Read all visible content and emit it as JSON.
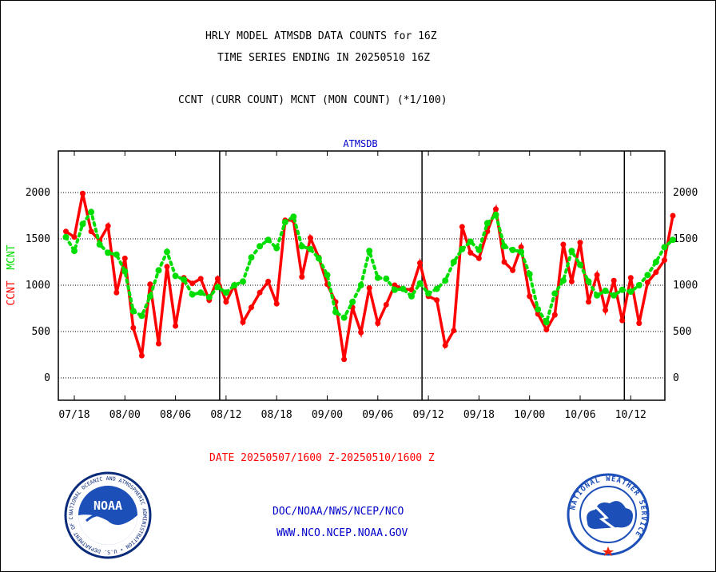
{
  "titles": {
    "line1": "HRLY MODEL ATMSDB DATA COUNTS for 16Z",
    "line2": "TIME SERIES ENDING IN 20250510 16Z",
    "line3": "CCNT (CURR COUNT) MCNT (MON COUNT) (*1/100)"
  },
  "footer": {
    "date_range": "DATE 20250507/1600 Z-20250510/1600 Z",
    "link1": "DOC/NOAA/NWS/NCEP/NCO",
    "link2": "WWW.NCO.NCEP.NOAA.GOV"
  },
  "logos": {
    "noaa_text": "NOAA",
    "noaa_ring": "NATIONAL OCEANIC AND ATMOSPHERIC ADMINISTRATION • U.S. DEPARTMENT OF COMMERCE •",
    "nws_ring": "NATIONAL WEATHER SERVICE"
  },
  "colors": {
    "ccnt": "#ff0000",
    "mcnt": "#00dd00",
    "panel_title": "#0000cc",
    "footer_red": "#ff0000",
    "footer_blue": "#0000cc"
  },
  "chart_data": {
    "type": "line",
    "title": "ATMSDB",
    "ylabel_ccnt": "CCNT",
    "ylabel_mcnt": "MCNT",
    "ylim": [
      -250,
      2450
    ],
    "yticks": [
      0,
      500,
      1000,
      1500,
      2000
    ],
    "x_tick_labels": [
      "07/18",
      "08/00",
      "08/06",
      "08/12",
      "08/18",
      "09/00",
      "09/06",
      "09/12",
      "09/18",
      "10/00",
      "10/06",
      "10/12"
    ],
    "day_separators_after_index": [
      3,
      7,
      11
    ],
    "grid": true,
    "series": [
      {
        "name": "CCNT",
        "values": [
          1580,
          1520,
          1990,
          1580,
          1480,
          1640,
          920,
          1290,
          540,
          240,
          1010,
          370,
          1200,
          560,
          1080,
          1020,
          1070,
          840,
          1070,
          820,
          1000,
          600,
          760,
          920,
          1040,
          800,
          1700,
          1700,
          1090,
          1510,
          1300,
          1010,
          820,
          200,
          760,
          490,
          970,
          590,
          790,
          1000,
          960,
          950,
          1240,
          880,
          840,
          350,
          510,
          1630,
          1350,
          1290,
          1580,
          1820,
          1250,
          1160,
          1410,
          880,
          690,
          520,
          680,
          1440,
          1040,
          1460,
          820,
          1110,
          730,
          1050,
          620,
          1080,
          590,
          1030,
          1140,
          1270,
          1750
        ]
      },
      {
        "name": "MCNT",
        "values": [
          1520,
          1370,
          1660,
          1790,
          1440,
          1350,
          1330,
          1150,
          720,
          670,
          880,
          1160,
          1360,
          1100,
          1060,
          900,
          920,
          870,
          980,
          920,
          1000,
          1040,
          1300,
          1420,
          1490,
          1400,
          1680,
          1740,
          1420,
          1390,
          1290,
          1110,
          710,
          650,
          820,
          1000,
          1370,
          1080,
          1070,
          950,
          960,
          880,
          1020,
          910,
          960,
          1050,
          1250,
          1390,
          1470,
          1380,
          1670,
          1760,
          1420,
          1380,
          1360,
          1120,
          740,
          600,
          910,
          1050,
          1370,
          1220,
          1040,
          890,
          940,
          890,
          950,
          930,
          1000,
          1110,
          1250,
          1410,
          1490
        ]
      }
    ]
  }
}
